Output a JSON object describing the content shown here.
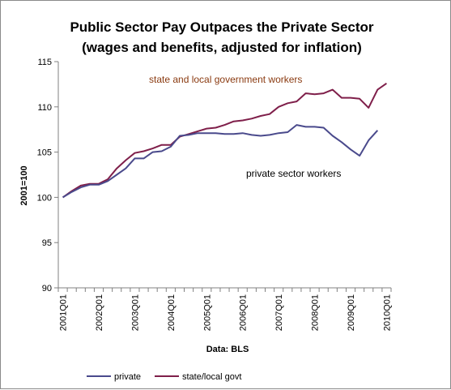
{
  "chart_data": {
    "type": "line",
    "title": "Public Sector Pay Outpaces the Private Sector",
    "subtitle": "(wages and benefits, adjusted for inflation)",
    "ylabel": "2001=100",
    "xlabel": "Data: BLS",
    "ylim": [
      90,
      115
    ],
    "yticks": [
      90,
      95,
      100,
      105,
      110,
      115
    ],
    "grid": "off",
    "legend_position": "bottom",
    "x_tick_labels": [
      "2001Q01",
      "2002Q01",
      "2003Q01",
      "2004Q01",
      "2005Q01",
      "2006Q01",
      "2007Q01",
      "2008Q01",
      "2009Q01",
      "2010Q01"
    ],
    "x": [
      "2001Q1",
      "2001Q2",
      "2001Q3",
      "2001Q4",
      "2002Q1",
      "2002Q2",
      "2002Q3",
      "2002Q4",
      "2003Q1",
      "2003Q2",
      "2003Q3",
      "2003Q4",
      "2004Q1",
      "2004Q2",
      "2004Q3",
      "2004Q4",
      "2005Q1",
      "2005Q2",
      "2005Q3",
      "2005Q4",
      "2006Q1",
      "2006Q2",
      "2006Q3",
      "2006Q4",
      "2007Q1",
      "2007Q2",
      "2007Q3",
      "2007Q4",
      "2008Q1",
      "2008Q2",
      "2008Q3",
      "2008Q4",
      "2009Q1",
      "2009Q2",
      "2009Q3",
      "2009Q4",
      "2010Q1"
    ],
    "series": [
      {
        "name": "private",
        "color": "#4a4a8c",
        "values": [
          100.0,
          100.6,
          101.1,
          101.4,
          101.4,
          101.8,
          102.5,
          103.2,
          104.3,
          104.3,
          105.0,
          105.1,
          105.6,
          106.8,
          106.9,
          107.1,
          107.1,
          107.1,
          107.0,
          107.0,
          107.1,
          106.9,
          106.8,
          106.9,
          107.1,
          107.2,
          108.0,
          107.8,
          107.8,
          107.7,
          106.8,
          106.1,
          105.3,
          104.6,
          106.3,
          107.4,
          null
        ]
      },
      {
        "name": "state/local govt",
        "color": "#7f1f4a",
        "values": [
          100.0,
          100.7,
          101.3,
          101.5,
          101.5,
          102.0,
          103.2,
          104.1,
          104.9,
          105.1,
          105.4,
          105.8,
          105.8,
          106.7,
          107.0,
          107.3,
          107.6,
          107.7,
          108.0,
          108.4,
          108.5,
          108.7,
          109.0,
          109.2,
          110.0,
          110.4,
          110.6,
          111.5,
          111.4,
          111.5,
          111.9,
          111.0,
          111.0,
          110.9,
          109.9,
          111.9,
          112.6
        ]
      }
    ],
    "annotations": [
      {
        "text": "state and local government workers",
        "series": "state/local govt"
      },
      {
        "text": "private sector workers",
        "series": "private"
      }
    ]
  }
}
